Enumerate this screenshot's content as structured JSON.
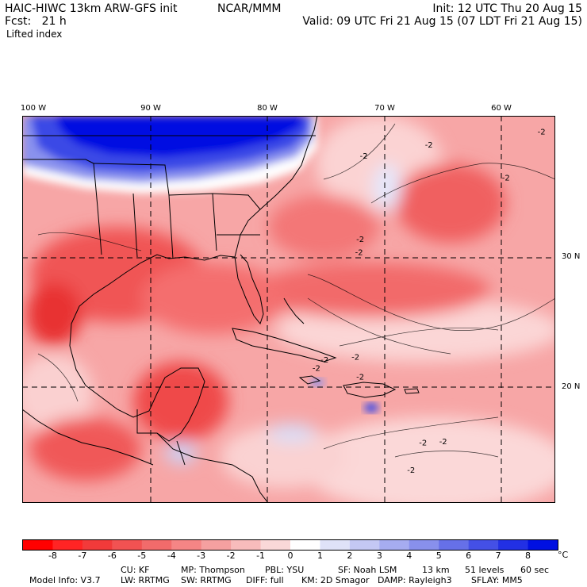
{
  "header": {
    "model": "HAIC-HIWC 13km ARW-GFS init",
    "org": "NCAR/MMM",
    "init": "Init: 12 UTC Thu 20 Aug 15",
    "fcst": "Fcst:   21 h",
    "valid": "Valid: 09 UTC Fri 21 Aug 15 (07 LDT Fri 21 Aug 15)",
    "field": "Lifted index"
  },
  "axes": {
    "lon_labels": [
      "100 W",
      "90 W",
      "80 W",
      "70 W",
      "60 W"
    ],
    "lat_labels": [
      "30 N",
      "20 N"
    ]
  },
  "map_data": {
    "type": "heatmap",
    "field": "Lifted index",
    "lon_range": [
      -100,
      -55
    ],
    "lat_range": [
      13.5,
      40.5
    ],
    "gridlines_lon": [
      -90,
      -80,
      -70,
      -60
    ],
    "gridlines_lat": [
      20,
      30
    ],
    "contour_labels": [
      {
        "lon": -71.5,
        "lat": 37.5,
        "text": "-2"
      },
      {
        "lon": -66,
        "lat": 38.3,
        "text": "-2"
      },
      {
        "lon": -56.5,
        "lat": 39.2,
        "text": "-2"
      },
      {
        "lon": -59.5,
        "lat": 36,
        "text": "-2"
      },
      {
        "lon": -71.8,
        "lat": 31.7,
        "text": "-2"
      },
      {
        "lon": -71.9,
        "lat": 30.8,
        "text": "-2"
      },
      {
        "lon": -72.2,
        "lat": 23.5,
        "text": "-2"
      },
      {
        "lon": -74.8,
        "lat": 23.3,
        "text": "-2"
      },
      {
        "lon": -75.5,
        "lat": 22.7,
        "text": "-2"
      },
      {
        "lon": -71.8,
        "lat": 22.1,
        "text": "-2"
      },
      {
        "lon": -66.5,
        "lat": 17.5,
        "text": "-2"
      },
      {
        "lon": -64.8,
        "lat": 17.6,
        "text": "-2"
      },
      {
        "lon": -67.5,
        "lat": 15.6,
        "text": "-2"
      }
    ]
  },
  "colorbar": {
    "labels": [
      "-8",
      "-7",
      "-6",
      "-5",
      "-4",
      "-3",
      "-2",
      "-1",
      "0",
      "1",
      "2",
      "3",
      "4",
      "5",
      "6",
      "7",
      "8"
    ],
    "unit": "°C",
    "colors": [
      "#ff0000",
      "#ff2424",
      "#f23a3a",
      "#f25252",
      "#f26b6b",
      "#f58585",
      "#f5a0a0",
      "#f8bcbc",
      "#fad8d8",
      "#ffffff",
      "#dfe2f8",
      "#c4c8f4",
      "#a6acf0",
      "#8890ec",
      "#6670e8",
      "#4450e6",
      "#2230e4",
      "#0010e2"
    ]
  },
  "model_info": {
    "line1": [
      "Model Info: V3.7",
      "CU: KF",
      "MP: Thompson",
      "PBL: YSU",
      "SF: Noah LSM",
      "13 km",
      "51 levels",
      "60 sec"
    ],
    "line2": [
      "LW: RRTMG",
      "SW: RRTMG",
      "DIFF: full",
      "KM: 2D Smagor",
      "DAMP: Rayleigh3",
      "SFLAY: MM5"
    ]
  }
}
